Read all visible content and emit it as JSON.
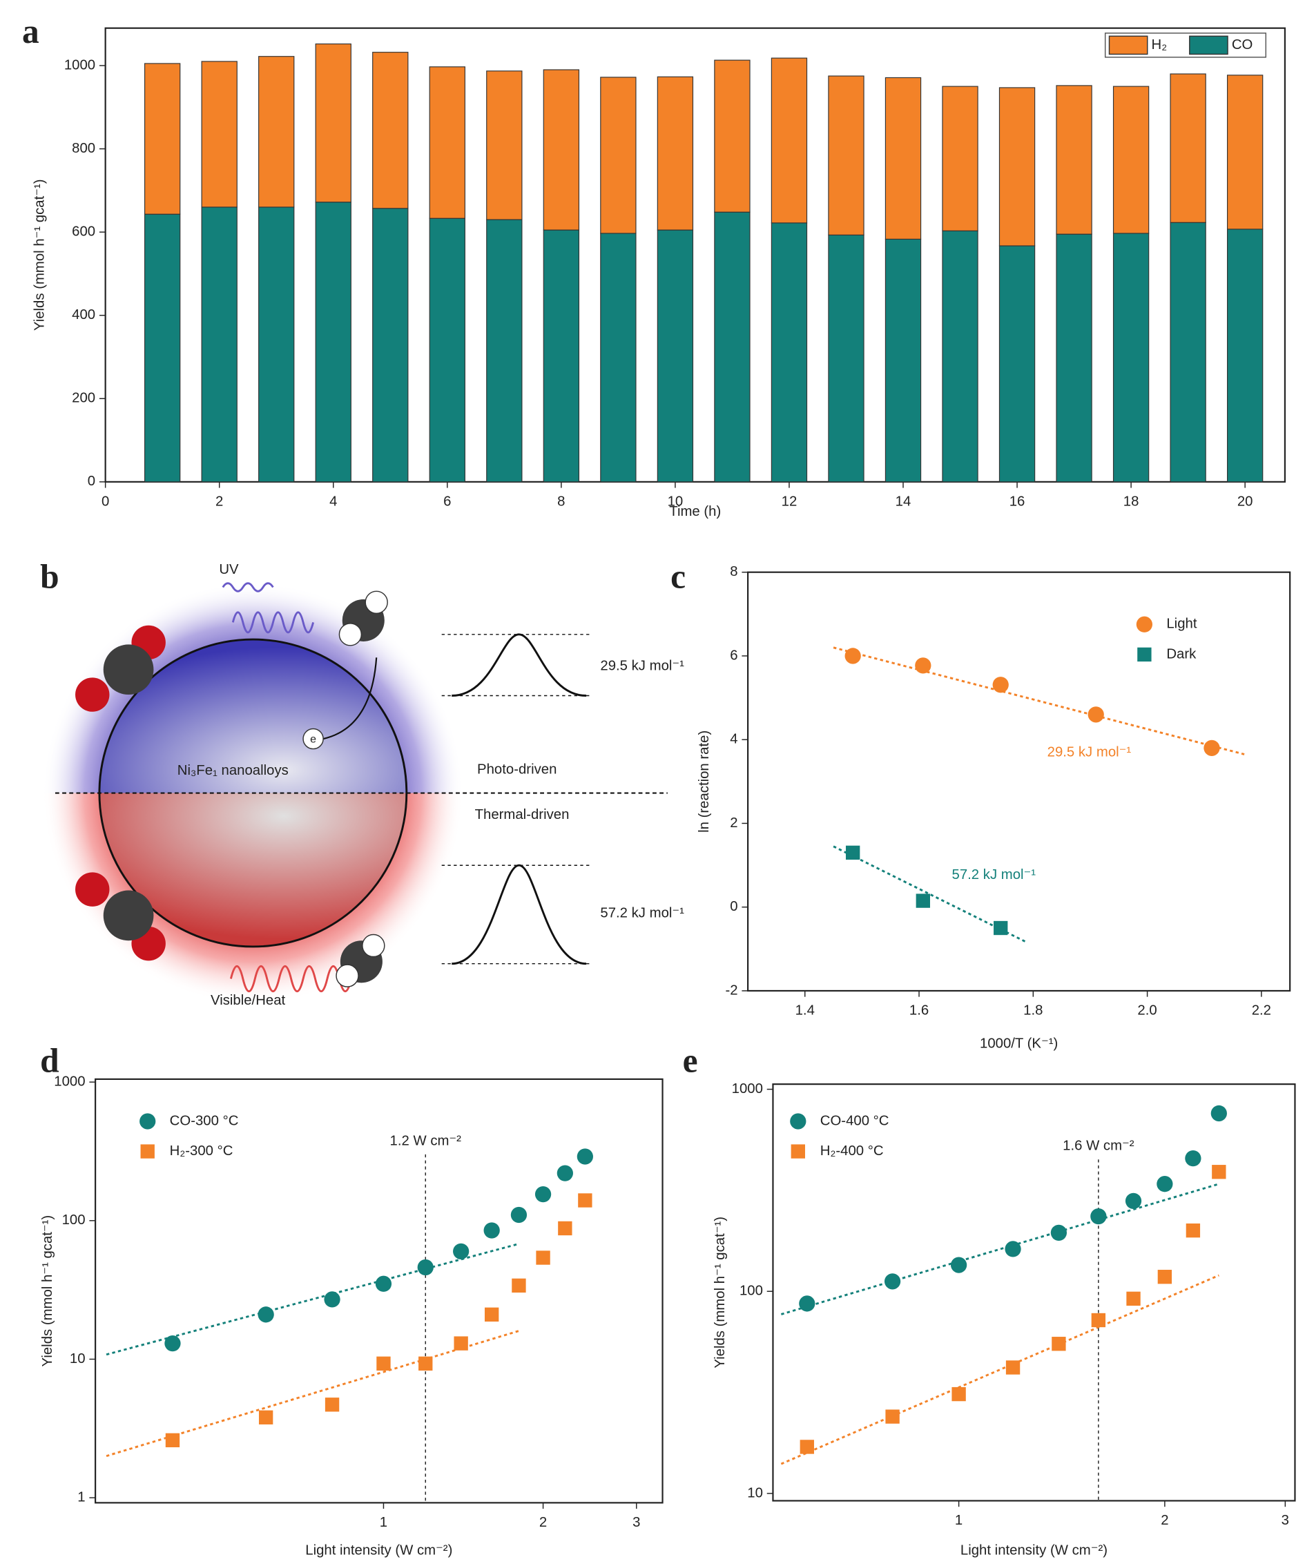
{
  "chart_data": [
    {
      "type": "bar",
      "label": "a",
      "stacked": true,
      "xlabel": "Time (h)",
      "ylabel": "Yields (mmol h⁻¹ gcat⁻¹)",
      "x": [
        1,
        2,
        3,
        4,
        5,
        6,
        7,
        8,
        9,
        10,
        11,
        12,
        13,
        14,
        15,
        16,
        17,
        18,
        19,
        20
      ],
      "series": [
        {
          "name": "CO",
          "color": "#13807a",
          "values": [
            643,
            660,
            660,
            672,
            657,
            633,
            630,
            605,
            597,
            605,
            648,
            622,
            593,
            583,
            603,
            567,
            595,
            597,
            623,
            607
          ]
        },
        {
          "name": "H₂",
          "color": "#f38228",
          "values": [
            362,
            350,
            362,
            380,
            375,
            364,
            357,
            385,
            375,
            368,
            365,
            396,
            382,
            388,
            347,
            380,
            357,
            353,
            357,
            370
          ]
        }
      ],
      "xlim": [
        0,
        20.7
      ],
      "xticks": [
        0,
        2,
        4,
        6,
        8,
        10,
        12,
        14,
        16,
        18,
        20
      ],
      "ylim": [
        0,
        1090
      ],
      "yticks": [
        0,
        200,
        400,
        600,
        800,
        1000
      ],
      "legend": "upper right"
    },
    {
      "type": "scatter",
      "label": "c",
      "xlabel": "1000/T (K⁻¹)",
      "ylabel": "ln (reaction rate)",
      "series": [
        {
          "name": "Light",
          "color": "#f38228",
          "marker": "circle",
          "x": [
            1.484,
            1.607,
            1.743,
            1.91,
            2.113
          ],
          "values": [
            6.0,
            5.77,
            5.31,
            4.6,
            3.8
          ]
        },
        {
          "name": "Dark",
          "color": "#13807a",
          "marker": "square",
          "x": [
            1.484,
            1.607,
            1.743
          ],
          "values": [
            1.3,
            0.15,
            -0.5
          ]
        }
      ],
      "fit_lines": [
        {
          "color": "#f38228",
          "x": [
            1.45,
            2.17
          ],
          "y": [
            6.2,
            3.65
          ]
        },
        {
          "color": "#13807a",
          "x": [
            1.45,
            1.79
          ],
          "y": [
            1.45,
            -0.85
          ]
        }
      ],
      "annotations": [
        {
          "text": "29.5 kJ mol⁻¹",
          "color": "#f38228"
        },
        {
          "text": "57.2 kJ mol⁻¹",
          "color": "#13807a"
        }
      ],
      "xlim": [
        1.3,
        2.25
      ],
      "xticks": [
        1.4,
        1.6,
        1.8,
        {
          "value": 2,
          "label": "2.0"
        },
        2.2
      ],
      "ylim": [
        -2,
        8
      ],
      "yticks": [
        -2,
        0,
        2,
        4,
        6,
        8
      ],
      "legend": "upper right"
    },
    {
      "type": "scatter",
      "label": "d",
      "xlabel": "Light intensity (W cm⁻²)",
      "ylabel": "Yields (mmol h⁻¹ gcat⁻¹)",
      "xlog": true,
      "ylog": true,
      "series": [
        {
          "name": "CO-300 °C",
          "color": "#13807a",
          "marker": "circle",
          "x": [
            0.4,
            0.6,
            0.8,
            1.0,
            1.2,
            1.4,
            1.6,
            1.8,
            2.0,
            2.2,
            2.4
          ],
          "values": [
            13,
            21,
            27,
            35,
            46,
            60,
            85,
            110,
            155,
            220,
            290
          ]
        },
        {
          "name": "H₂-300 °C",
          "color": "#f38228",
          "marker": "square",
          "x": [
            0.4,
            0.6,
            0.8,
            1.0,
            1.2,
            1.4,
            1.6,
            1.8,
            2.0,
            2.2,
            2.4
          ],
          "values": [
            2.6,
            3.8,
            4.7,
            9.3,
            9.3,
            13,
            21,
            34,
            54,
            88,
            140
          ]
        }
      ],
      "fit_lines": [
        {
          "color": "#13807a",
          "x": [
            0.3,
            1.8
          ],
          "y": [
            10.8,
            68
          ]
        },
        {
          "color": "#f38228",
          "x": [
            0.3,
            1.8
          ],
          "y": [
            2.0,
            16
          ]
        }
      ],
      "reference_x": 1.2,
      "reference_label": "1.2 W cm⁻²",
      "xlim": [
        0.286,
        3.36
      ],
      "xticks": [
        1,
        2,
        3
      ],
      "ylim": [
        0.92,
        1050
      ],
      "yticks": [
        1,
        10,
        100,
        1000
      ],
      "legend": "upper left"
    },
    {
      "type": "scatter",
      "label": "e",
      "xlabel": "Light intensity (W cm⁻²)",
      "ylabel": "Yields (mmol h⁻¹ gcat⁻¹)",
      "xlog": true,
      "ylog": true,
      "series": [
        {
          "name": "CO-400 °C",
          "color": "#13807a",
          "marker": "circle",
          "x": [
            0.6,
            0.8,
            1.0,
            1.2,
            1.4,
            1.6,
            1.8,
            2.0,
            2.2,
            2.4
          ],
          "values": [
            87,
            112,
            135,
            162,
            195,
            235,
            280,
            340,
            455,
            760
          ]
        },
        {
          "name": "H₂-400 °C",
          "color": "#f38228",
          "marker": "square",
          "x": [
            0.6,
            0.8,
            1.0,
            1.2,
            1.4,
            1.6,
            1.8,
            2.0,
            2.2,
            2.4
          ],
          "values": [
            17,
            24,
            31,
            42,
            55,
            72,
            92,
            118,
            200,
            390
          ]
        }
      ],
      "fit_lines": [
        {
          "color": "#13807a",
          "x": [
            0.55,
            2.4
          ],
          "y": [
            77,
            340
          ]
        },
        {
          "color": "#f38228",
          "x": [
            0.55,
            2.4
          ],
          "y": [
            14,
            120
          ]
        }
      ],
      "reference_x": 1.6,
      "reference_label": "1.6 W cm⁻²",
      "xlim": [
        0.535,
        3.1
      ],
      "xticks": [
        1,
        2,
        3
      ],
      "ylim": [
        9.2,
        1060
      ],
      "yticks": [
        10,
        100,
        1000
      ],
      "legend": "upper left"
    }
  ],
  "diagram": {
    "label": "b",
    "uv": "UV",
    "photo_barrier": "29.5 kJ mol⁻¹",
    "particle": "Ni₃Fe₁ nanoalloys",
    "photo": "Photo-driven",
    "thermal": "Thermal-driven",
    "thermal_barrier": "57.2 kJ mol⁻¹",
    "visible": "Visible/Heat",
    "electron": "e"
  }
}
